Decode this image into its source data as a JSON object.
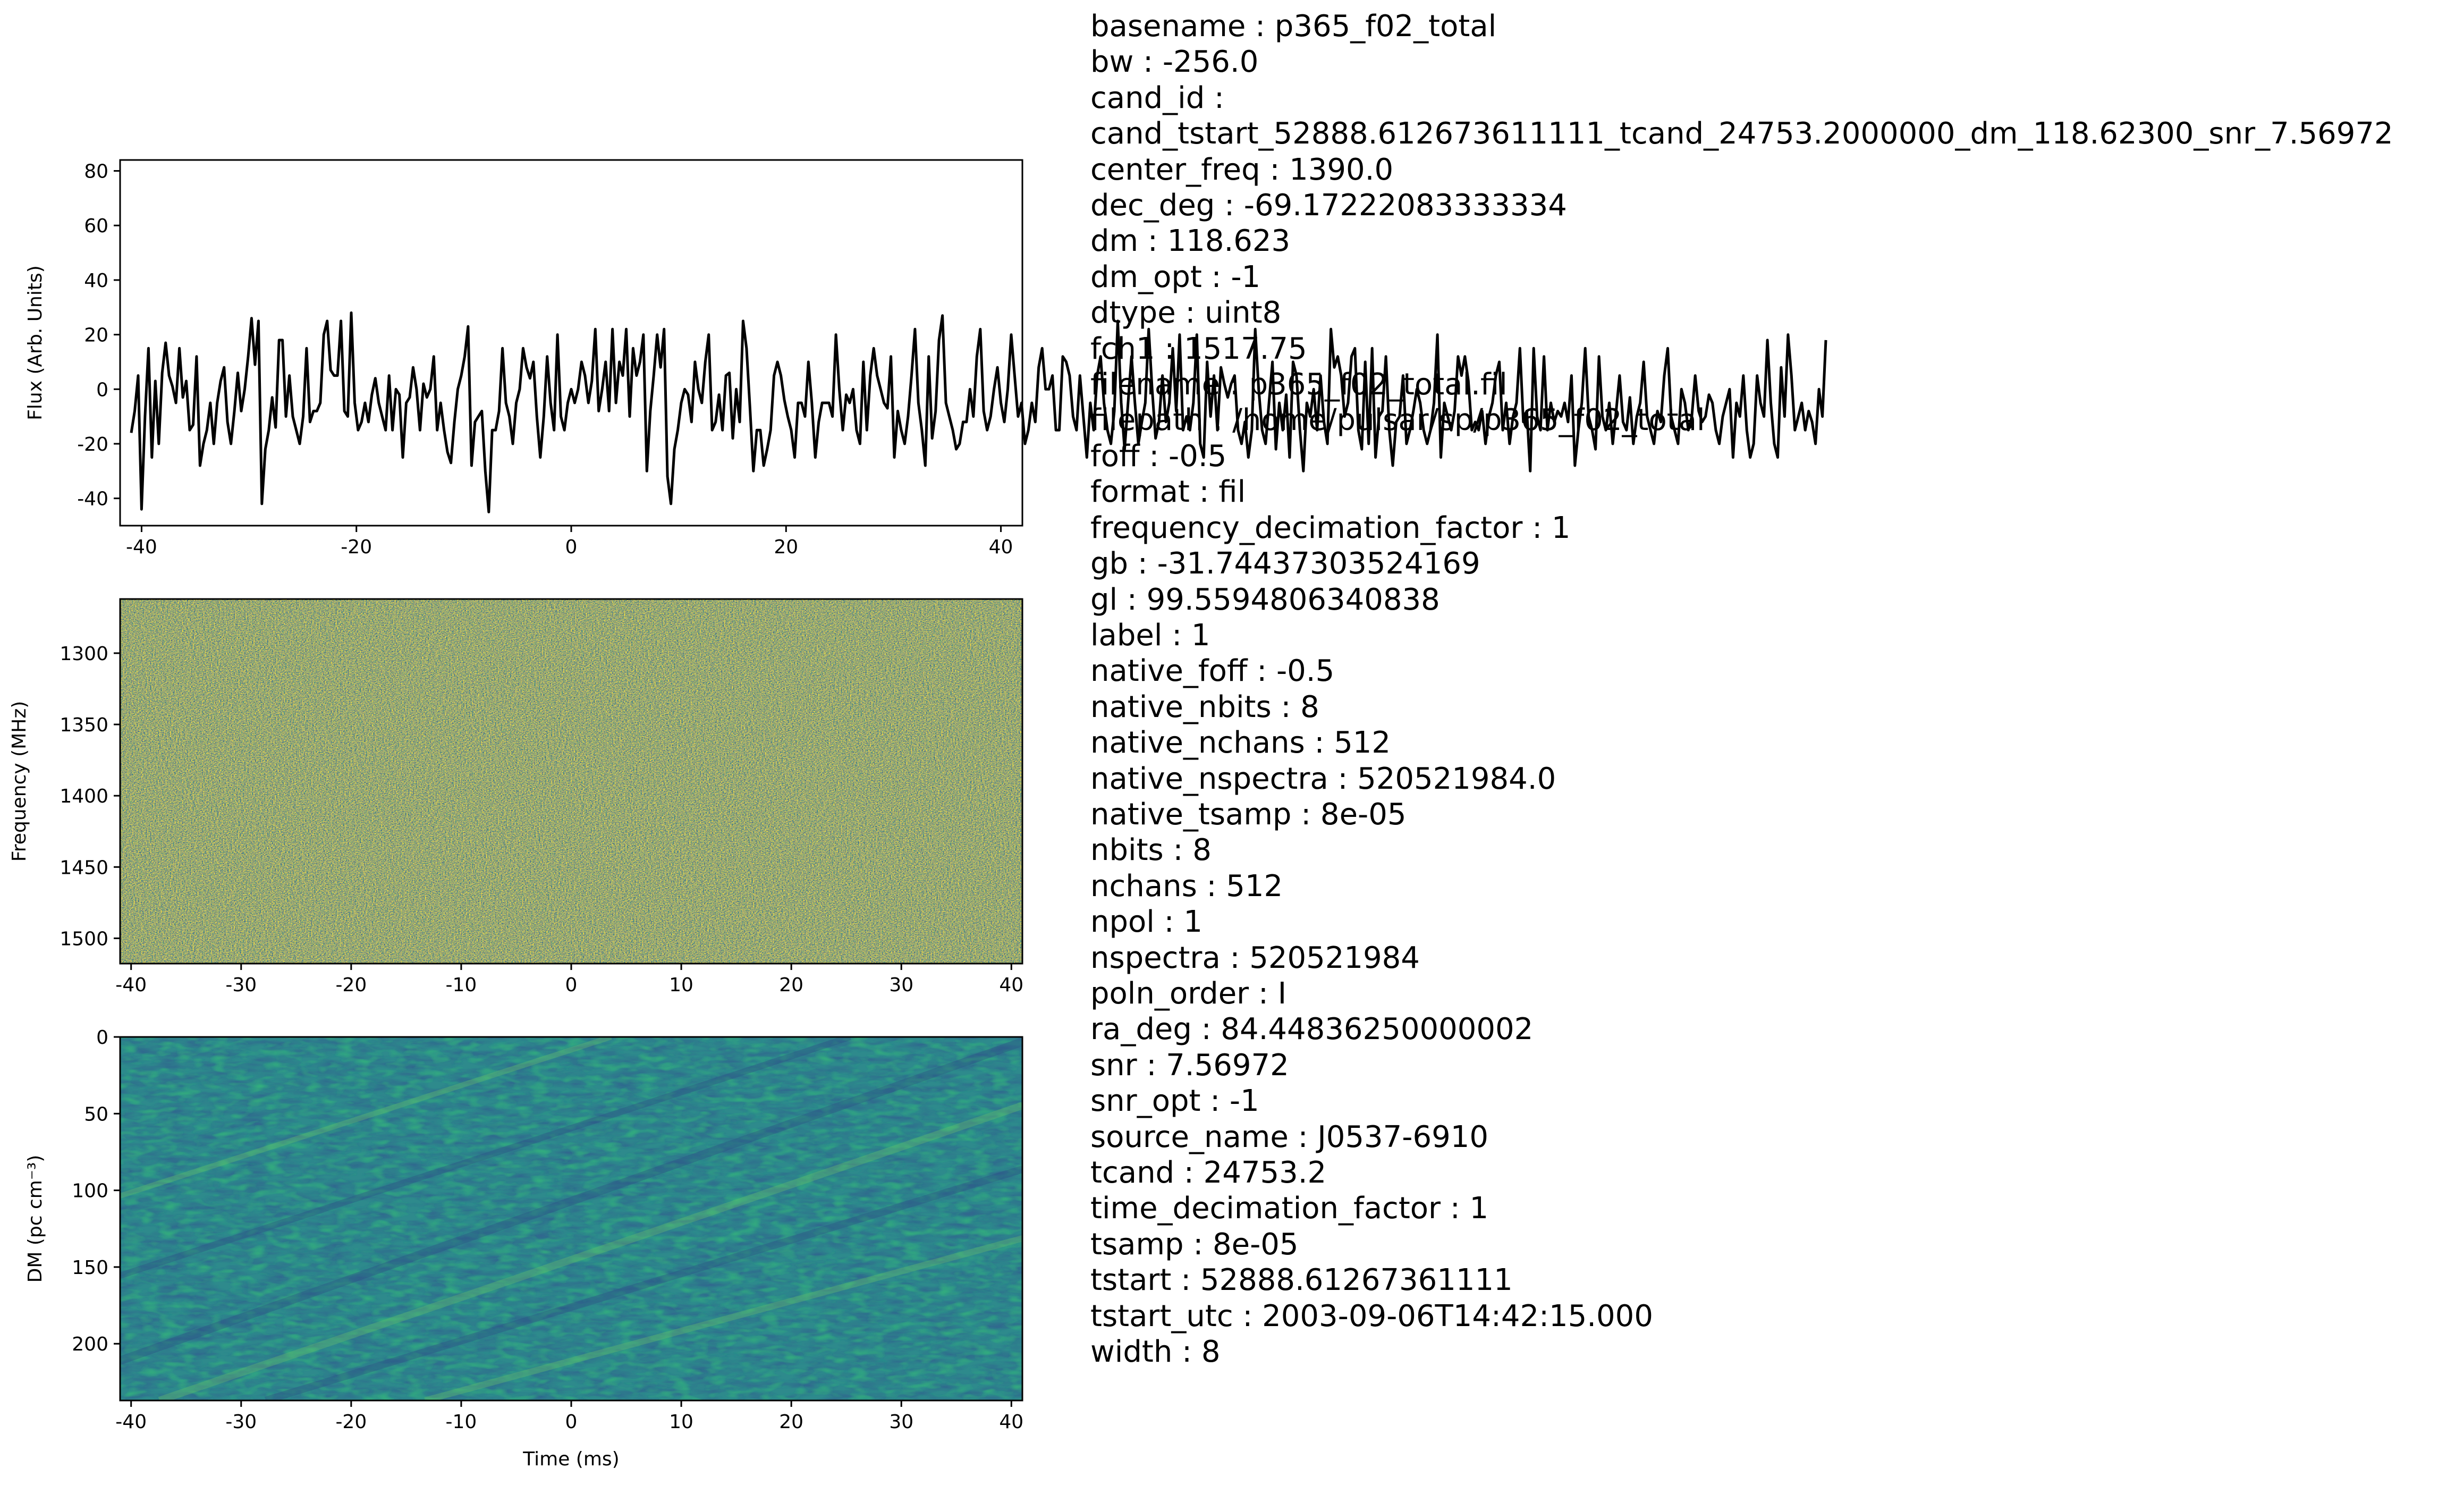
{
  "chart_data": [
    {
      "type": "line",
      "ylabel": "Flux (Arb. Units)",
      "xlim": [
        -42,
        42
      ],
      "ylim": [
        -50,
        84
      ],
      "xticks": [
        -40,
        -20,
        0,
        20,
        40
      ],
      "yticks": [
        -40,
        -20,
        0,
        20,
        40,
        60,
        80
      ],
      "line_color": "#000000",
      "series": [
        {
          "x_start": -40.96,
          "x_step": 0.32,
          "values": [
            -16,
            -8,
            5,
            -44,
            -10,
            15,
            -25,
            3,
            -20,
            6,
            17,
            5,
            1,
            -5,
            15,
            -3,
            3,
            -15,
            -13,
            12,
            -28,
            -20,
            -15,
            -5,
            -20,
            -5,
            3,
            8,
            -12,
            -20,
            -8,
            6,
            -8,
            0,
            12,
            26,
            9,
            25,
            -42,
            -22,
            -15,
            -3,
            -14,
            18,
            18,
            -10,
            5,
            -10,
            -15,
            -20,
            -10,
            15,
            -12,
            -8,
            -8,
            -5,
            20,
            25,
            7,
            5,
            5,
            25,
            -8,
            -10,
            28,
            -5,
            -15,
            -12,
            -5,
            -12,
            -2,
            4,
            -5,
            -10,
            -15,
            5,
            -15,
            0,
            -2,
            -25,
            -5,
            -3,
            8,
            0,
            -15,
            2,
            -3,
            0,
            12,
            -15,
            -5,
            -15,
            -23,
            -27,
            -12,
            0,
            5,
            12,
            23,
            -28,
            -12,
            -10,
            -8,
            -30,
            -45,
            -15,
            -15,
            -8,
            15,
            -5,
            -10,
            -20,
            -5,
            0,
            15,
            8,
            4,
            10,
            -10,
            -25,
            -10,
            12,
            -5,
            -15,
            20,
            -10,
            -15,
            -5,
            0,
            -5,
            0,
            10,
            5,
            -5,
            3,
            22,
            -8,
            0,
            10,
            -8,
            22,
            -5,
            10,
            5,
            22,
            -10,
            15,
            5,
            10,
            20,
            -30,
            -8,
            5,
            20,
            8,
            22,
            -32,
            -42,
            -22,
            -15,
            -5,
            0,
            -2,
            -12,
            10,
            0,
            -5,
            10,
            20,
            -15,
            -12,
            -2,
            -15,
            5,
            6,
            -18,
            0,
            -12,
            25,
            15,
            -7,
            -30,
            -15,
            -15,
            -28,
            -22,
            -15,
            5,
            10,
            5,
            -4,
            -10,
            -15,
            -25,
            -5,
            -5,
            -10,
            10,
            -5,
            -25,
            -12,
            -5,
            -5,
            -5,
            -10,
            20,
            0,
            -15,
            -2,
            -5,
            0,
            -15,
            -20,
            10,
            -15,
            5,
            15,
            5,
            0,
            -5,
            -7,
            12,
            -25,
            -8,
            -15,
            -20,
            -10,
            5,
            22,
            -5,
            -15,
            -28,
            12,
            -18,
            -8,
            18,
            27,
            -5,
            -10,
            -15,
            -22,
            -20,
            -12,
            -12,
            0,
            -10,
            12,
            22,
            -8,
            -15,
            -10,
            0,
            8,
            -5,
            -12,
            0,
            20,
            5,
            -10,
            -5,
            -20,
            -15,
            -5,
            -12,
            8,
            15,
            0,
            0,
            5,
            -15,
            -15,
            12,
            10,
            5,
            -10,
            -15,
            5,
            -10,
            -25,
            -5,
            -15,
            5,
            12,
            -5,
            -15,
            -20,
            -8,
            25,
            -5,
            -22,
            -5,
            12,
            -5,
            -20,
            -12,
            -5,
            22,
            0,
            -18,
            -12,
            5,
            -12,
            -5,
            15,
            -8,
            20,
            -15,
            -10,
            -15,
            -5,
            20,
            -20,
            -25,
            10,
            -10,
            5,
            -15,
            8,
            2,
            -3,
            2,
            5,
            -15,
            -20,
            -12,
            -25,
            -15,
            22,
            0,
            -15,
            -20,
            -5,
            10,
            -22,
            -5,
            -15,
            -2,
            -25,
            10,
            5,
            -15,
            -30,
            -5,
            -10,
            0,
            -15,
            5,
            -12,
            -20,
            22,
            8,
            12,
            5,
            -10,
            -5,
            12,
            15,
            -15,
            -22,
            10,
            -20,
            15,
            -25,
            -10,
            -8,
            12,
            -15,
            -28,
            -12,
            -10,
            5,
            -20,
            -15,
            -8,
            0,
            -5,
            -15,
            -20,
            -15,
            -5,
            20,
            -25,
            -5,
            -10,
            -15,
            -8,
            12,
            5,
            12,
            3,
            -15,
            -12,
            -15,
            -8,
            -20,
            -10,
            -5,
            5,
            10,
            -15,
            -5,
            -20,
            -10,
            -5,
            15,
            -12,
            -8,
            -30,
            15,
            -10,
            -15,
            12,
            -15,
            -5,
            -12,
            -8,
            -10,
            -5,
            -12,
            5,
            -28,
            -15,
            -5,
            15,
            -10,
            -15,
            -22,
            12,
            -10,
            -15,
            -5,
            -20,
            -8,
            5,
            -12,
            -15,
            -3,
            -20,
            -10,
            -5,
            10,
            -10,
            -15,
            -20,
            -8,
            -12,
            5,
            15,
            -10,
            -15,
            -20,
            0,
            -5,
            -15,
            -10,
            5,
            -8,
            -12,
            -10,
            -2,
            -5,
            -15,
            -20,
            -10,
            -5,
            0,
            -25,
            -5,
            -10,
            5,
            -15,
            -25,
            -20,
            5,
            -5,
            -10,
            18,
            -5,
            -20,
            -25,
            8,
            -10,
            20,
            5,
            -15,
            -10,
            -5,
            -15,
            -8,
            -12,
            -20,
            0,
            -10,
            18
          ]
        }
      ]
    },
    {
      "type": "heatmap",
      "ylabel": "Frequency (MHz)",
      "xlim": [
        -41.0,
        41.0
      ],
      "ylim": [
        1517.75,
        1262.0
      ],
      "xticks": [
        -40,
        -30,
        -20,
        -10,
        0,
        10,
        20,
        30,
        40
      ],
      "yticks": [
        1300,
        1350,
        1400,
        1450,
        1500
      ],
      "colormap": "viridis"
    },
    {
      "type": "heatmap",
      "xlabel": "Time (ms)",
      "ylabel": "DM (pc cm⁻³)",
      "xlim": [
        -41.0,
        41.0
      ],
      "ylim": [
        237,
        0
      ],
      "xticks": [
        -40,
        -30,
        -20,
        -10,
        0,
        10,
        20,
        30,
        40
      ],
      "yticks": [
        0,
        50,
        100,
        150,
        200
      ],
      "colormap": "viridis"
    }
  ],
  "metadata_lines": [
    "basename : p365_f02_total",
    "bw : -256.0",
    "cand_id :",
    "cand_tstart_52888.612673611111_tcand_24753.2000000_dm_118.62300_snr_7.56972",
    "center_freq : 1390.0",
    "dec_deg : -69.17222083333334",
    "dm : 118.623",
    "dm_opt : -1",
    "dtype : uint8",
    "fch1 : 1517.75",
    "filename : p365_f02_total.fil",
    "filepath : /home/pulsar/sp/p365_f02_total",
    "foff : -0.5",
    "format : fil",
    "frequency_decimation_factor : 1",
    "gb : -31.74437303524169",
    "gl : 99.5594806340838",
    "label : 1",
    "native_foff : -0.5",
    "native_nbits : 8",
    "native_nchans : 512",
    "native_nspectra : 520521984.0",
    "native_tsamp : 8e-05",
    "nbits : 8",
    "nchans : 512",
    "npol : 1",
    "nspectra : 520521984",
    "poln_order : I",
    "ra_deg : 84.44836250000002",
    "snr : 7.56972",
    "snr_opt : -1",
    "source_name : J0537-6910",
    "tcand : 24753.2",
    "time_decimation_factor : 1",
    "tsamp : 8e-05",
    "tstart : 52888.61267361111",
    "tstart_utc : 2003-09-06T14:42:15.000",
    "width : 8"
  ]
}
